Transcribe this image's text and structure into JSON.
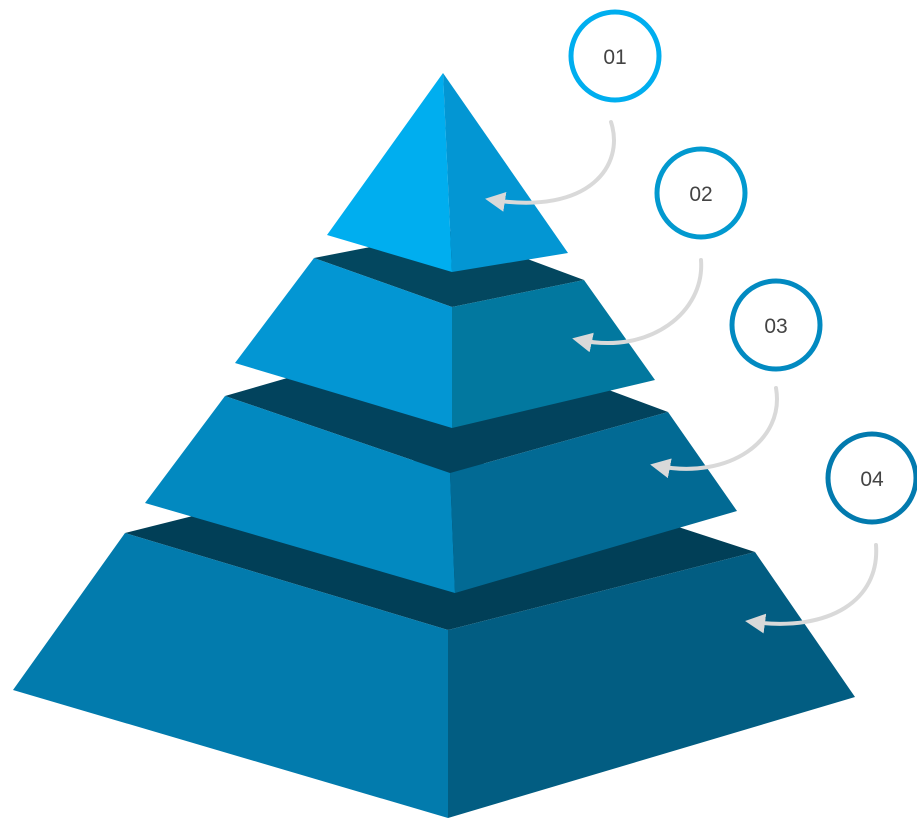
{
  "diagram": {
    "type": "3d-pyramid",
    "levels": [
      {
        "number": "01",
        "color_left": "#00AEEF",
        "color_right": "#0396D3",
        "color_top": ""
      },
      {
        "number": "02",
        "color_left": "#0396D3",
        "color_right": "#02789F",
        "color_top": "#03475F"
      },
      {
        "number": "03",
        "color_left": "#0289C0",
        "color_right": "#026A94",
        "color_top": "#02435D"
      },
      {
        "number": "04",
        "color_left": "#027BAD",
        "color_right": "#025D82",
        "color_top": "#013F57"
      }
    ],
    "badge_colors": [
      "#00AEEF",
      "#0299CF",
      "#028AC1",
      "#027AAE"
    ],
    "connector_color": "#D9D9D9",
    "background": "#FFFFFF"
  }
}
